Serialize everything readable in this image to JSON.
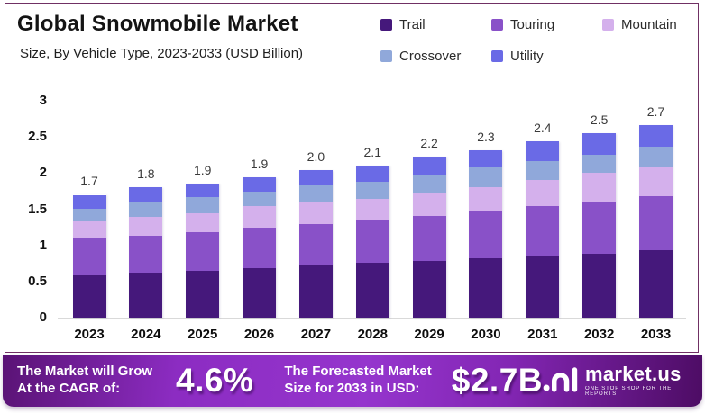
{
  "header": {
    "title": "Global Snowmobile Market",
    "subtitle": "Size, By Vehicle Type, 2023-2033 (USD Billion)"
  },
  "chart_data": {
    "type": "bar",
    "stacked": true,
    "title": "Global Snowmobile Market Size, By Vehicle Type, 2023-2033 (USD Billion)",
    "categories": [
      "2023",
      "2024",
      "2025",
      "2026",
      "2027",
      "2028",
      "2029",
      "2030",
      "2031",
      "2032",
      "2033"
    ],
    "series": [
      {
        "name": "Trail",
        "color": "#45187b",
        "values": [
          0.59,
          0.62,
          0.65,
          0.68,
          0.72,
          0.76,
          0.79,
          0.82,
          0.86,
          0.89,
          0.93
        ]
      },
      {
        "name": "Touring",
        "color": "#8951c8",
        "values": [
          0.5,
          0.51,
          0.53,
          0.56,
          0.58,
          0.59,
          0.62,
          0.65,
          0.68,
          0.72,
          0.75
        ]
      },
      {
        "name": "Mountain",
        "color": "#d4b0ec",
        "values": [
          0.24,
          0.26,
          0.27,
          0.3,
          0.3,
          0.3,
          0.32,
          0.34,
          0.36,
          0.39,
          0.4
        ]
      },
      {
        "name": "Crossover",
        "color": "#90a8da",
        "values": [
          0.18,
          0.21,
          0.22,
          0.21,
          0.23,
          0.23,
          0.25,
          0.27,
          0.27,
          0.26,
          0.29
        ]
      },
      {
        "name": "Utility",
        "color": "#6a6ae6",
        "values": [
          0.19,
          0.2,
          0.19,
          0.19,
          0.21,
          0.23,
          0.25,
          0.24,
          0.27,
          0.29,
          0.29
        ]
      }
    ],
    "total_labels": [
      "1.7",
      "1.8",
      "1.9",
      "1.9",
      "2.0",
      "2.1",
      "2.2",
      "2.3",
      "2.4",
      "2.5",
      "2.7"
    ],
    "ylim": [
      0,
      3
    ],
    "yticks": [
      "0",
      "0.5",
      "1",
      "1.5",
      "2",
      "2.5",
      "3"
    ],
    "grid": false,
    "legend_position": "top-right"
  },
  "banner": {
    "cagr_label_line1": "The Market will Grow",
    "cagr_label_line2": "At the CAGR of:",
    "cagr_value": "4.6%",
    "forecast_label_line1": "The Forecasted Market",
    "forecast_label_line2": "Size for 2033 in USD:",
    "forecast_value": "$2.7B",
    "logo_text": "market.us",
    "logo_tagline": "ONE STOP SHOP FOR THE REPORTS"
  },
  "colors": {
    "card_border": "#703064",
    "banner_center": "#9535cd",
    "banner_edge": "#4d0c64",
    "baseline": "#d9d9d9",
    "value_label": "#3a3a3a"
  }
}
